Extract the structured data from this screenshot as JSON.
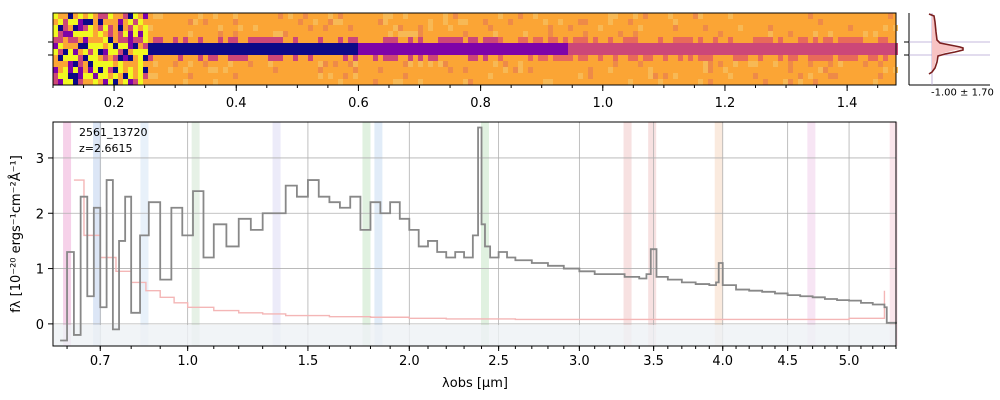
{
  "chart_data": [
    {
      "type": "heatmap",
      "panel": "2d-spectrum",
      "xlim": [
        0.1,
        1.48
      ],
      "x_ticks": [
        "0.2",
        "0.4",
        "0.6",
        "0.8",
        "1.0",
        "1.2",
        "1.4"
      ],
      "x_tick_values": [
        0.2,
        0.4,
        0.6,
        0.8,
        1.0,
        1.2,
        1.4
      ],
      "colormap": [
        "#0d0887",
        "#7e03a8",
        "#cc4778",
        "#f89540",
        "#f0f921"
      ],
      "background_color": "#fba535",
      "trace_color": "#5a1a9a"
    },
    {
      "type": "line",
      "panel": "profile",
      "annotation": "-1.00 ± 1.70",
      "profile_color": "#7a1f1f",
      "fill_color": "#f7c3c3"
    },
    {
      "type": "line",
      "panel": "1d-spectrum",
      "object_id": "2561_13720",
      "redshift_label": "z=2.6615",
      "xlabel": "λobs [μm]",
      "ylabel": "fλ [10⁻²⁰ ergs⁻¹cm⁻²Å⁻¹]",
      "ylim": [
        -0.4,
        3.65
      ],
      "y_ticks": [
        0,
        1,
        2,
        3
      ],
      "x_ticks": [
        "0.7",
        "1.0",
        "1.5",
        "2.0",
        "2.5",
        "3.0",
        "3.5",
        "4.0",
        "4.5",
        "5.0"
      ],
      "x_tick_positions": [
        0.7,
        1.0,
        1.5,
        2.0,
        2.5,
        3.0,
        3.5,
        4.0,
        4.5,
        5.0
      ],
      "x_scale": "sqrt",
      "xlim": [
        0.56,
        5.4
      ],
      "grid": true,
      "series": [
        {
          "color": "#888888",
          "x": [
            0.58,
            0.6,
            0.62,
            0.64,
            0.66,
            0.68,
            0.7,
            0.72,
            0.74,
            0.76,
            0.78,
            0.8,
            0.83,
            0.86,
            0.9,
            0.94,
            0.98,
            1.02,
            1.06,
            1.1,
            1.15,
            1.2,
            1.25,
            1.3,
            1.35,
            1.4,
            1.45,
            1.5,
            1.55,
            1.6,
            1.65,
            1.7,
            1.75,
            1.8,
            1.85,
            1.9,
            1.95,
            2.0,
            2.05,
            2.1,
            2.15,
            2.2,
            2.25,
            2.3,
            2.35,
            2.38,
            2.4,
            2.42,
            2.45,
            2.5,
            2.55,
            2.6,
            2.7,
            2.8,
            2.9,
            3.0,
            3.1,
            3.2,
            3.3,
            3.4,
            3.45,
            3.48,
            3.52,
            3.6,
            3.7,
            3.8,
            3.9,
            3.95,
            3.97,
            4.0,
            4.1,
            4.2,
            4.3,
            4.4,
            4.5,
            4.6,
            4.7,
            4.8,
            4.9,
            5.0,
            5.1,
            5.2,
            5.3,
            5.32,
            5.4
          ],
          "y": [
            -0.3,
            1.3,
            -0.2,
            2.3,
            0.5,
            2.1,
            0.3,
            2.6,
            -0.1,
            1.5,
            2.3,
            0.2,
            1.6,
            2.2,
            0.8,
            2.1,
            1.6,
            2.4,
            1.2,
            1.8,
            1.4,
            1.9,
            1.7,
            2.0,
            2.0,
            2.5,
            2.3,
            2.6,
            2.3,
            2.2,
            2.1,
            2.3,
            1.7,
            2.2,
            2.0,
            2.2,
            1.9,
            1.7,
            1.4,
            1.5,
            1.3,
            1.2,
            1.3,
            1.2,
            1.6,
            3.55,
            1.8,
            1.4,
            1.2,
            1.3,
            1.2,
            1.15,
            1.1,
            1.05,
            1.0,
            0.95,
            0.9,
            0.9,
            0.85,
            0.82,
            0.9,
            1.35,
            0.85,
            0.8,
            0.75,
            0.72,
            0.7,
            0.75,
            1.1,
            0.7,
            0.62,
            0.6,
            0.58,
            0.55,
            0.52,
            0.5,
            0.48,
            0.45,
            0.43,
            0.42,
            0.38,
            0.35,
            0.3,
            0.02,
            0.0
          ]
        },
        {
          "color": "#f4b6b6",
          "x": [
            0.62,
            0.65,
            0.7,
            0.75,
            0.8,
            0.85,
            0.9,
            0.95,
            1.0,
            1.1,
            1.2,
            1.3,
            1.4,
            1.6,
            1.8,
            2.0,
            2.2,
            2.4,
            2.6,
            2.8,
            3.0,
            3.5,
            4.0,
            4.5,
            5.0,
            5.3
          ],
          "y": [
            2.6,
            1.6,
            1.2,
            0.95,
            0.75,
            0.6,
            0.48,
            0.38,
            0.3,
            0.24,
            0.2,
            0.18,
            0.15,
            0.13,
            0.12,
            0.1,
            0.09,
            0.09,
            0.08,
            0.08,
            0.08,
            0.08,
            0.08,
            0.08,
            0.1,
            0.6
          ]
        }
      ],
      "line_markers": [
        {
          "x": 0.6,
          "color": "#e57bc0"
        },
        {
          "x": 0.69,
          "color": "#9ab8e6"
        },
        {
          "x": 0.845,
          "color": "#bdd8f2"
        },
        {
          "x": 1.03,
          "color": "#b7d6b7"
        },
        {
          "x": 1.36,
          "color": "#c9c5ee"
        },
        {
          "x": 1.78,
          "color": "#a6d8a6"
        },
        {
          "x": 1.84,
          "color": "#a8c8ea"
        },
        {
          "x": 2.42,
          "color": "#a6d8a6"
        },
        {
          "x": 3.32,
          "color": "#e8a8a8"
        },
        {
          "x": 3.49,
          "color": "#e8a8a8"
        },
        {
          "x": 3.97,
          "color": "#f2c2a0"
        },
        {
          "x": 4.69,
          "color": "#e8b4e0"
        },
        {
          "x": 5.38,
          "color": "#f2b4c6"
        }
      ]
    }
  ]
}
